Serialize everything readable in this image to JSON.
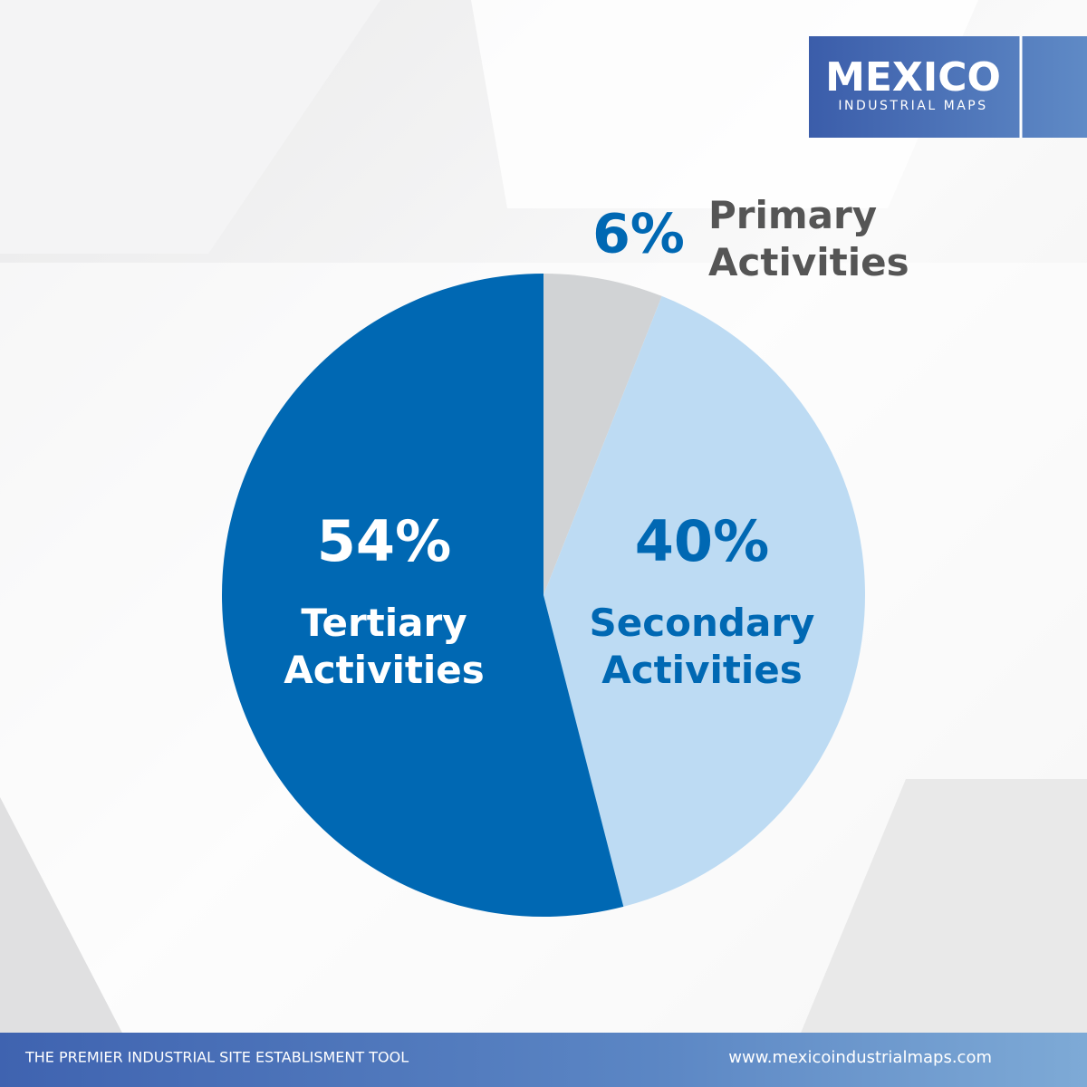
{
  "chart_data": {
    "type": "pie",
    "categories": [
      "Primary Activities",
      "Secondary Activities",
      "Tertiary Activities"
    ],
    "values": [
      6,
      40,
      54
    ],
    "value_labels": [
      "6%",
      "40%",
      "54%"
    ],
    "colors": [
      "#d1d3d5",
      "#bddbf3",
      "#0068b3"
    ]
  },
  "logo": {
    "title": "MEXICO",
    "subtitle": "INDUSTRIAL MAPS"
  },
  "footer": {
    "tagline": "THE PREMIER INDUSTRIAL SITE ESTABLISMENT TOOL",
    "url": "www.mexicoindustrialmaps.com"
  }
}
